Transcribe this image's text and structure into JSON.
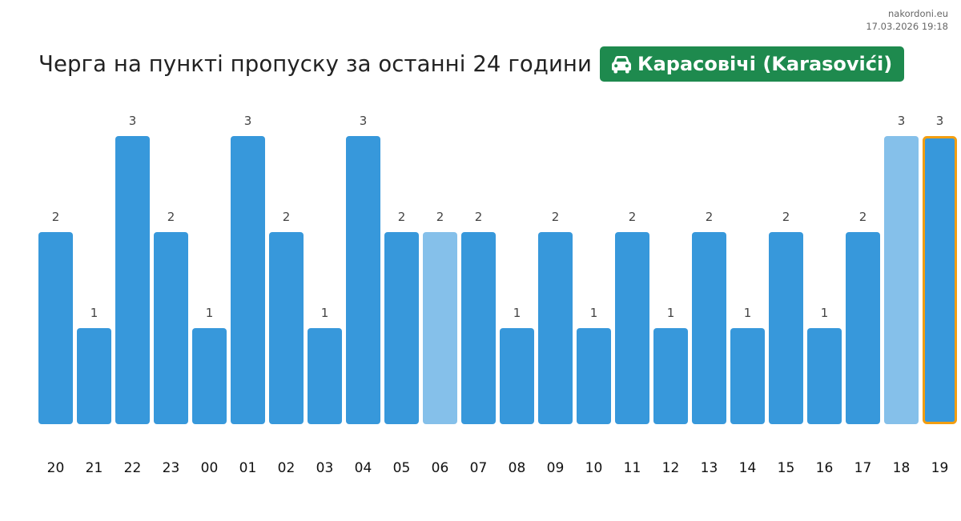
{
  "site": {
    "domain": "nakordoni.eu",
    "timestamp": "17.03.2026 19:18"
  },
  "header": {
    "title": "Черга на пункті пропуску за останні 24 години",
    "location": "Карасовічі (Karasovići)",
    "location_icon": "car-icon",
    "badge_color": "#1e8a4e"
  },
  "chart_data": {
    "type": "bar",
    "categories": [
      "20",
      "21",
      "22",
      "23",
      "00",
      "01",
      "02",
      "03",
      "04",
      "05",
      "06",
      "07",
      "08",
      "09",
      "10",
      "11",
      "12",
      "13",
      "14",
      "15",
      "16",
      "17",
      "18",
      "19"
    ],
    "values": [
      2,
      1,
      3,
      2,
      1,
      3,
      2,
      1,
      3,
      2,
      2,
      2,
      1,
      2,
      1,
      2,
      1,
      2,
      1,
      2,
      1,
      2,
      3,
      3
    ],
    "ylim": [
      0,
      3
    ],
    "grid": false,
    "colors": {
      "default": "#3798db",
      "light": "#85c0ea",
      "current_outline": "#f29e11"
    },
    "light_bars": [
      "06",
      "18"
    ],
    "current": "19"
  }
}
